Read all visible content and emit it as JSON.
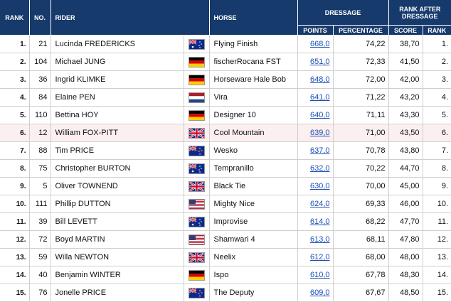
{
  "headers": {
    "rank": "RANK",
    "no": "NO.",
    "rider": "RIDER",
    "horse": "HORSE",
    "dressage": "DRESSAGE",
    "rank_after": "RANK AFTER DRESSAGE",
    "points": "POINTS",
    "percentage": "PERCENTAGE",
    "score": "SCORE",
    "rank2": "RANK"
  },
  "rows": [
    {
      "rank": "1.",
      "no": "21",
      "rider": "Lucinda FREDERICKS",
      "flag": "australia-flag-icon",
      "horse": "Flying Finish",
      "points": "668,0",
      "percentage": "74,22",
      "score": "38,70",
      "rank_after": "1."
    },
    {
      "rank": "2.",
      "no": "104",
      "rider": "Michael JUNG",
      "flag": "germany-flag-icon",
      "horse": "fischerRocana FST",
      "points": "651,0",
      "percentage": "72,33",
      "score": "41,50",
      "rank_after": "2."
    },
    {
      "rank": "3.",
      "no": "36",
      "rider": "Ingrid KLIMKE",
      "flag": "germany-flag-icon",
      "horse": "Horseware Hale Bob",
      "points": "648,0",
      "percentage": "72,00",
      "score": "42,00",
      "rank_after": "3."
    },
    {
      "rank": "4.",
      "no": "84",
      "rider": "Elaine PEN",
      "flag": "netherlands-flag-icon",
      "horse": "Vira",
      "points": "641,0",
      "percentage": "71,22",
      "score": "43,20",
      "rank_after": "4."
    },
    {
      "rank": "5.",
      "no": "110",
      "rider": "Bettina HOY",
      "flag": "germany-flag-icon",
      "horse": "Designer 10",
      "points": "640,0",
      "percentage": "71,11",
      "score": "43,30",
      "rank_after": "5."
    },
    {
      "rank": "6.",
      "no": "12",
      "rider": "William FOX-PITT",
      "flag": "uk-flag-icon",
      "horse": "Cool Mountain",
      "points": "639,0",
      "percentage": "71,00",
      "score": "43,50",
      "rank_after": "6.",
      "highlight": true
    },
    {
      "rank": "7.",
      "no": "88",
      "rider": "Tim PRICE",
      "flag": "new-zealand-flag-icon",
      "horse": "Wesko",
      "points": "637,0",
      "percentage": "70,78",
      "score": "43,80",
      "rank_after": "7."
    },
    {
      "rank": "8.",
      "no": "75",
      "rider": "Christopher BURTON",
      "flag": "australia-flag-icon",
      "horse": "Tempranillo",
      "points": "632,0",
      "percentage": "70,22",
      "score": "44,70",
      "rank_after": "8."
    },
    {
      "rank": "9.",
      "no": "5",
      "rider": "Oliver TOWNEND",
      "flag": "uk-flag-icon",
      "horse": "Black Tie",
      "points": "630,0",
      "percentage": "70,00",
      "score": "45,00",
      "rank_after": "9."
    },
    {
      "rank": "10.",
      "no": "111",
      "rider": "Phillip DUTTON",
      "flag": "usa-flag-icon",
      "horse": "Mighty Nice",
      "points": "624,0",
      "percentage": "69,33",
      "score": "46,00",
      "rank_after": "10."
    },
    {
      "rank": "11.",
      "no": "39",
      "rider": "Bill LEVETT",
      "flag": "australia-flag-icon",
      "horse": "Improvise",
      "points": "614,0",
      "percentage": "68,22",
      "score": "47,70",
      "rank_after": "11."
    },
    {
      "rank": "12.",
      "no": "72",
      "rider": "Boyd MARTIN",
      "flag": "usa-flag-icon",
      "horse": "Shamwari 4",
      "points": "613,0",
      "percentage": "68,11",
      "score": "47,80",
      "rank_after": "12."
    },
    {
      "rank": "13.",
      "no": "59",
      "rider": "Willa NEWTON",
      "flag": "uk-flag-icon",
      "horse": "Neelix",
      "points": "612,0",
      "percentage": "68,00",
      "score": "48,00",
      "rank_after": "13."
    },
    {
      "rank": "14.",
      "no": "40",
      "rider": "Benjamin WINTER",
      "flag": "germany-flag-icon",
      "horse": "Ispo",
      "points": "610,0",
      "percentage": "67,78",
      "score": "48,30",
      "rank_after": "14."
    },
    {
      "rank": "15.",
      "no": "76",
      "rider": "Jonelle PRICE",
      "flag": "new-zealand-flag-icon",
      "horse": "The Deputy",
      "points": "609,0",
      "percentage": "67,67",
      "score": "48,50",
      "rank_after": "15."
    }
  ]
}
